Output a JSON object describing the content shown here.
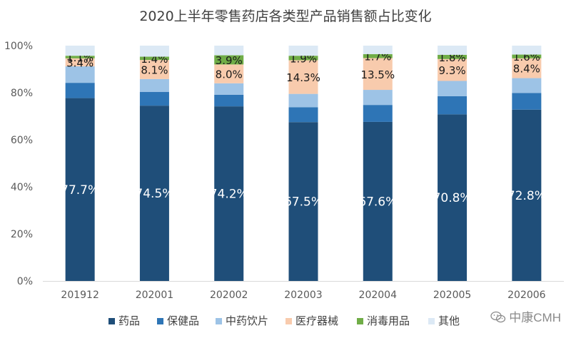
{
  "chart_data": {
    "type": "bar",
    "stacked": true,
    "title": "2020上半年零售药店各类型产品销售额占比变化",
    "categories": [
      "201912",
      "202001",
      "202002",
      "202003",
      "202004",
      "202005",
      "202006"
    ],
    "y_ticks": [
      "0%",
      "20%",
      "40%",
      "60%",
      "80%",
      "100%"
    ],
    "ylim": [
      0,
      100
    ],
    "grid": false,
    "legend_position": "bottom",
    "series": [
      {
        "name": "药品",
        "color": "#1f4e79",
        "values": [
          77.7,
          74.5,
          74.2,
          67.5,
          67.6,
          70.8,
          72.8
        ],
        "labels": [
          "77.7%",
          "74.5%",
          "74.2%",
          "67.5%",
          "67.6%",
          "70.8%",
          "72.8%"
        ]
      },
      {
        "name": "保健品",
        "color": "#2e75b6",
        "values": [
          6.5,
          5.8,
          4.9,
          6.3,
          7.2,
          7.7,
          7.1
        ]
      },
      {
        "name": "中药饮片",
        "color": "#9dc3e6",
        "values": [
          7.0,
          5.5,
          4.9,
          5.7,
          6.4,
          6.5,
          6.3
        ]
      },
      {
        "name": "医疗器械",
        "color": "#f8cbad",
        "values": [
          3.4,
          8.1,
          8.0,
          14.3,
          13.5,
          9.3,
          8.4
        ],
        "labels": [
          "3.4%",
          "8.1%",
          "8.0%",
          "14.3%",
          "13.5%",
          "9.3%",
          "8.4%"
        ]
      },
      {
        "name": "消毒用品",
        "color": "#70ad47",
        "values": [
          1.1,
          1.4,
          3.9,
          1.9,
          1.7,
          1.8,
          1.6
        ],
        "labels": [
          "1.1%",
          "1.4%",
          "3.9%",
          "1.9%",
          "1.7%",
          "1.8%",
          "1.6%"
        ]
      },
      {
        "name": "其他",
        "color": "#dce9f5",
        "values": [
          4.3,
          4.7,
          4.1,
          4.3,
          3.6,
          3.9,
          3.8
        ]
      }
    ]
  },
  "watermark": {
    "text": "中康CMH",
    "icon": "wechat-icon"
  }
}
